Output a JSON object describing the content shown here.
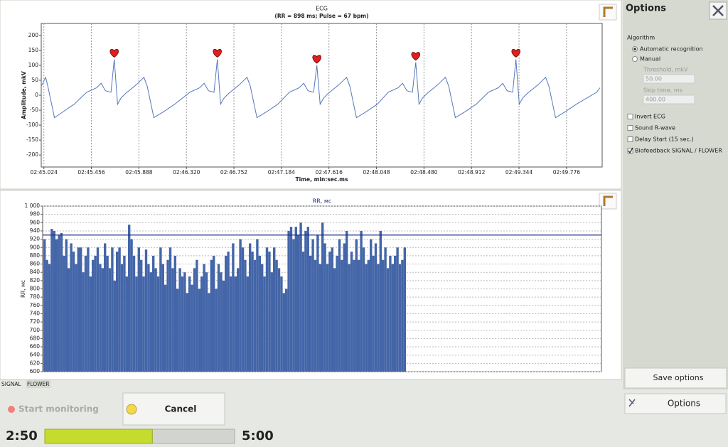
{
  "chart_data": [
    {
      "type": "line",
      "title": "ECG",
      "subtitle": "(RR = 898 ms; Pulse = 67 bpm)",
      "y_label": "Amplitude, mkV",
      "x_label": "Time, min:sec.ms",
      "color": "#5577bb",
      "x": [
        165.0,
        165.04,
        165.06,
        165.12,
        165.2,
        165.3,
        165.414,
        165.504,
        165.544,
        165.584,
        165.634,
        165.664,
        165.694,
        165.724,
        165.764,
        165.864,
        165.934,
        165.964,
        166.024,
        166.114,
        166.214,
        166.351,
        166.441,
        166.481,
        166.521,
        166.571,
        166.601,
        166.631,
        166.661,
        166.701,
        166.801,
        166.871,
        166.901,
        166.961,
        167.051,
        167.151,
        167.256,
        167.346,
        167.386,
        167.426,
        167.476,
        167.506,
        167.536,
        167.566,
        167.606,
        167.706,
        167.776,
        167.806,
        167.866,
        167.956,
        168.056,
        168.155,
        168.245,
        168.285,
        168.325,
        168.375,
        168.405,
        168.435,
        168.465,
        168.505,
        168.605,
        168.675,
        168.705,
        168.765,
        168.855,
        168.955,
        169.066,
        169.156,
        169.196,
        169.236,
        169.286,
        169.316,
        169.346,
        169.376,
        169.416,
        169.516,
        169.586,
        169.616,
        169.676,
        169.766,
        169.866,
        170.05,
        170.08
      ],
      "values": [
        30,
        60,
        30,
        -75,
        -55,
        -30,
        10,
        25,
        40,
        15,
        10,
        120,
        -30,
        -10,
        5,
        35,
        60,
        30,
        -75,
        -55,
        -30,
        10,
        25,
        40,
        15,
        10,
        120,
        -30,
        -10,
        5,
        35,
        60,
        30,
        -75,
        -55,
        -30,
        10,
        25,
        40,
        15,
        10,
        100,
        -30,
        -10,
        5,
        35,
        60,
        30,
        -75,
        -55,
        -30,
        10,
        25,
        40,
        15,
        10,
        110,
        -30,
        -10,
        5,
        35,
        60,
        30,
        -75,
        -55,
        -30,
        10,
        25,
        40,
        15,
        10,
        120,
        -30,
        -10,
        5,
        35,
        60,
        30,
        -75,
        -55,
        -30,
        10,
        25
      ],
      "markers": {
        "x": [
          165.664,
          166.601,
          167.506,
          168.405,
          169.316
        ],
        "y": [
          120,
          120,
          100,
          110,
          120
        ]
      },
      "xlim": [
        165.0,
        170.1
      ],
      "ylim": [
        -240,
        240
      ],
      "xticks": [
        {
          "value": 165.024,
          "label": "02:45.024"
        },
        {
          "value": 165.456,
          "label": "02:45.456"
        },
        {
          "value": 165.888,
          "label": "02:45.888"
        },
        {
          "value": 166.32,
          "label": "02:46.320"
        },
        {
          "value": 166.752,
          "label": "02:46.752"
        },
        {
          "value": 167.184,
          "label": "02:47.184"
        },
        {
          "value": 167.616,
          "label": "02:47.616"
        },
        {
          "value": 168.048,
          "label": "02:48.048"
        },
        {
          "value": 168.48,
          "label": "02:48.480"
        },
        {
          "value": 168.912,
          "label": "02:48.912"
        },
        {
          "value": 169.344,
          "label": "02:49.344"
        },
        {
          "value": 169.776,
          "label": "02:49.776"
        }
      ],
      "yticks": [
        200,
        150,
        100,
        50,
        0,
        -50,
        -100,
        -150,
        -200
      ],
      "grid": "x"
    },
    {
      "type": "bar",
      "title": "RR, мс",
      "y_label": "RR, мс",
      "color": "#4466a8",
      "reference_line": 930,
      "reference_color": "#1a2a8a",
      "values": [
        920,
        870,
        860,
        945,
        940,
        920,
        930,
        935,
        880,
        920,
        850,
        910,
        890,
        860,
        900,
        900,
        840,
        880,
        900,
        830,
        870,
        880,
        900,
        860,
        850,
        910,
        880,
        850,
        900,
        820,
        890,
        900,
        860,
        880,
        830,
        955,
        920,
        880,
        830,
        900,
        870,
        830,
        895,
        860,
        840,
        880,
        850,
        830,
        900,
        860,
        810,
        870,
        900,
        850,
        880,
        800,
        850,
        830,
        840,
        790,
        830,
        810,
        850,
        870,
        800,
        830,
        860,
        840,
        790,
        870,
        880,
        800,
        860,
        840,
        820,
        880,
        890,
        830,
        910,
        830,
        850,
        920,
        900,
        870,
        830,
        910,
        890,
        870,
        920,
        880,
        860,
        830,
        900,
        890,
        840,
        900,
        870,
        850,
        830,
        790,
        800,
        940,
        950,
        920,
        950,
        930,
        960,
        890,
        940,
        950,
        880,
        920,
        870,
        930,
        860,
        960,
        910,
        860,
        890,
        900,
        850,
        880,
        920,
        870,
        910,
        940,
        860,
        890,
        870,
        920,
        870,
        940,
        900,
        860,
        870,
        920,
        880,
        910,
        860,
        940,
        870,
        900,
        850,
        880,
        860,
        880,
        900,
        860,
        870,
        900
      ],
      "ylim": [
        600,
        1000
      ],
      "yticks": [
        600,
        620,
        640,
        660,
        680,
        700,
        720,
        740,
        760,
        780,
        800,
        820,
        840,
        860,
        880,
        900,
        920,
        940,
        960,
        980,
        {
          "value": 1000,
          "label": "1 000"
        }
      ],
      "grid": "y"
    }
  ],
  "ui": {
    "tabs": [
      "SIGNAL",
      "FLOWER"
    ],
    "active_tab": 1,
    "options": {
      "title": "Options",
      "algorithm": "Algorithm",
      "modes": [
        {
          "label": "Automatic recognition",
          "selected": true
        },
        {
          "label": "Manual",
          "selected": false
        }
      ],
      "threshold_label": "Threshold, mkV",
      "threshold": "50.00",
      "skip_label": "Skip time, ms",
      "skip": "400.00",
      "checks": [
        {
          "label": "Invert ECG",
          "checked": false
        },
        {
          "label": "Sound R-wave",
          "checked": false
        },
        {
          "label": "Delay Start (15 sec.)",
          "checked": false
        },
        {
          "label": "Biofeedback SIGNAL / FLOWER",
          "checked": true
        }
      ],
      "save": "Save options",
      "options_button": "Options"
    },
    "start": "Start monitoring",
    "cancel": "Cancel",
    "elapsed": "2:50",
    "total": "5:00"
  }
}
